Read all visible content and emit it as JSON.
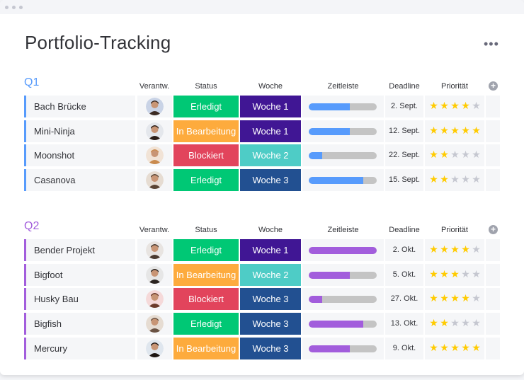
{
  "title": "Portfolio-Tracking",
  "colors": {
    "done": "#00c875",
    "working": "#fdab3d",
    "stuck": "#e2445c",
    "week_dark": "#401694",
    "week_teal": "#4eccc6",
    "week_blue": "#225091",
    "q1": "#579bfc",
    "q2": "#a25ddc",
    "star_on": "#ffcb00",
    "star_off": "#c5c7d0"
  },
  "columns": {
    "owner": "Verantw.",
    "status": "Status",
    "week": "Woche",
    "timeline": "Zeitleiste",
    "deadline": "Deadline",
    "priority": "Priorität"
  },
  "groups": [
    {
      "title": "Q1",
      "color": "#579bfc",
      "rows": [
        {
          "name": "Bach Brücke",
          "status": "Erledigt",
          "status_color": "#00c875",
          "week": "Woche 1",
          "week_color": "#401694",
          "timeline": 0.6,
          "deadline": "2. Sept.",
          "priority": 4
        },
        {
          "name": "Mini-Ninja",
          "status": "In Bearbeitung",
          "status_color": "#fdab3d",
          "week": "Woche 1",
          "week_color": "#401694",
          "timeline": 0.6,
          "deadline": "12. Sept.",
          "priority": 5
        },
        {
          "name": "Moonshot",
          "status": "Blockiert",
          "status_color": "#e2445c",
          "week": "Woche 2",
          "week_color": "#4eccc6",
          "timeline": 0.2,
          "deadline": "22. Sept.",
          "priority": 2
        },
        {
          "name": "Casanova",
          "status": "Erledigt",
          "status_color": "#00c875",
          "week": "Woche 3",
          "week_color": "#225091",
          "timeline": 0.8,
          "deadline": "15. Sept.",
          "priority": 2
        }
      ]
    },
    {
      "title": "Q2",
      "color": "#a25ddc",
      "rows": [
        {
          "name": "Bender Projekt",
          "status": "Erledigt",
          "status_color": "#00c875",
          "week": "Woche 1",
          "week_color": "#401694",
          "timeline": 1.0,
          "deadline": "2. Okt.",
          "priority": 4
        },
        {
          "name": "Bigfoot",
          "status": "In Bearbeitung",
          "status_color": "#fdab3d",
          "week": "Woche 2",
          "week_color": "#4eccc6",
          "timeline": 0.6,
          "deadline": "5. Okt.",
          "priority": 3
        },
        {
          "name": "Husky Bau",
          "status": "Blockiert",
          "status_color": "#e2445c",
          "week": "Woche 3",
          "week_color": "#225091",
          "timeline": 0.2,
          "deadline": "27. Okt.",
          "priority": 4
        },
        {
          "name": "Bigfish",
          "status": "Erledigt",
          "status_color": "#00c875",
          "week": "Woche 3",
          "week_color": "#225091",
          "timeline": 0.8,
          "deadline": "13. Okt.",
          "priority": 2
        },
        {
          "name": "Mercury",
          "status": "In Bearbeitung",
          "status_color": "#fdab3d",
          "week": "Woche 3",
          "week_color": "#225091",
          "timeline": 0.6,
          "deadline": "9. Okt.",
          "priority": 5
        }
      ]
    }
  ],
  "icons": {
    "more": "more-dots-icon",
    "add_column": "plus-circle-icon",
    "star": "star-icon",
    "avatar": "user-avatar-icon"
  }
}
